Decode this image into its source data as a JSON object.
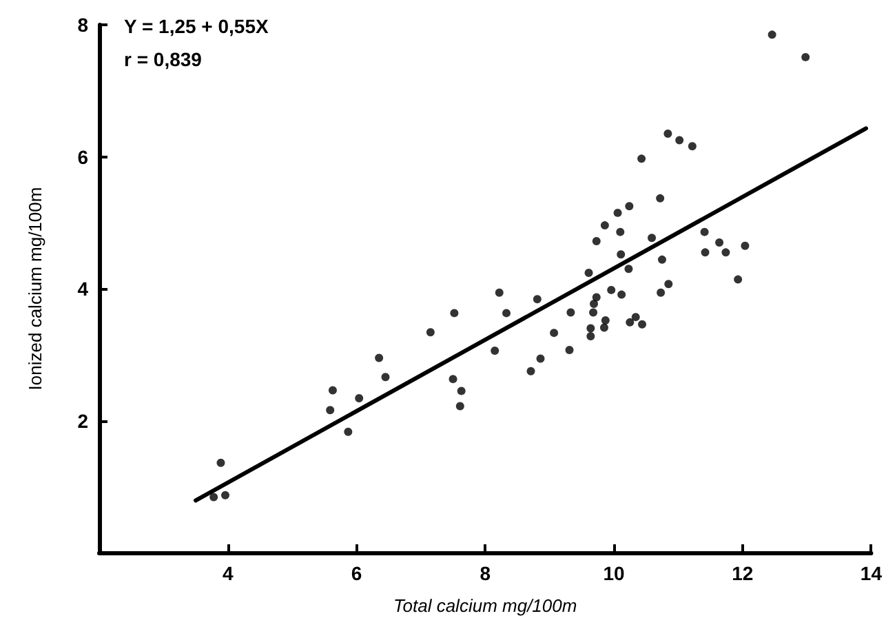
{
  "chart_data": {
    "type": "scatter",
    "xlabel": "Total calcium mg/100m",
    "ylabel": "Ionized calcium mg/100m",
    "annotations": [
      "Y = 1,25 + 0,55X",
      "r = 0,839"
    ],
    "xlim": [
      2,
      14
    ],
    "ylim": [
      0,
      8
    ],
    "xticks": [
      4,
      6,
      8,
      10,
      12,
      14
    ],
    "yticks": [
      2,
      4,
      6,
      8
    ],
    "grid": false,
    "series": [
      {
        "marker": "circle",
        "color": "#000000",
        "x": [
          3.89,
          3.78,
          3.96,
          5.59,
          5.63,
          5.87,
          6.04,
          6.35,
          6.45,
          7.15,
          7.52,
          7.5,
          7.63,
          7.61,
          8.22,
          8.33,
          8.15,
          8.81,
          8.71,
          8.86,
          9.07,
          9.33,
          9.31,
          9.73,
          9.69,
          9.68,
          9.64,
          9.64,
          9.87,
          9.85,
          9.96,
          10.12,
          10.25,
          10.34,
          10.44,
          10.73,
          10.85,
          11.93,
          12.46,
          12.98,
          10.84,
          11.02,
          11.22,
          10.43,
          10.72,
          10.24,
          10.06,
          9.86,
          10.1,
          9.73,
          10.59,
          11.41,
          11.64,
          11.74,
          11.42,
          12.04,
          10.11,
          10.23,
          10.75,
          9.61
        ],
        "values": [
          1.36,
          0.84,
          0.87,
          2.16,
          2.46,
          1.83,
          2.34,
          2.95,
          2.66,
          3.34,
          3.63,
          2.63,
          2.45,
          2.22,
          3.94,
          3.63,
          3.06,
          3.84,
          2.75,
          2.94,
          3.33,
          3.64,
          3.07,
          3.87,
          3.77,
          3.64,
          3.4,
          3.28,
          3.52,
          3.41,
          3.98,
          3.91,
          3.49,
          3.57,
          3.46,
          3.94,
          4.07,
          4.14,
          7.85,
          7.51,
          6.35,
          6.25,
          6.16,
          5.97,
          5.37,
          5.25,
          5.15,
          4.96,
          4.86,
          4.72,
          4.77,
          4.86,
          4.7,
          4.55,
          4.55,
          4.65,
          4.52,
          4.3,
          4.44,
          4.24
        ]
      },
      {
        "type": "line",
        "marker": "none",
        "line_style": "solid",
        "color": "#000000",
        "x": [
          3.5,
          13.92
        ],
        "values": [
          0.79,
          6.43
        ]
      }
    ]
  }
}
